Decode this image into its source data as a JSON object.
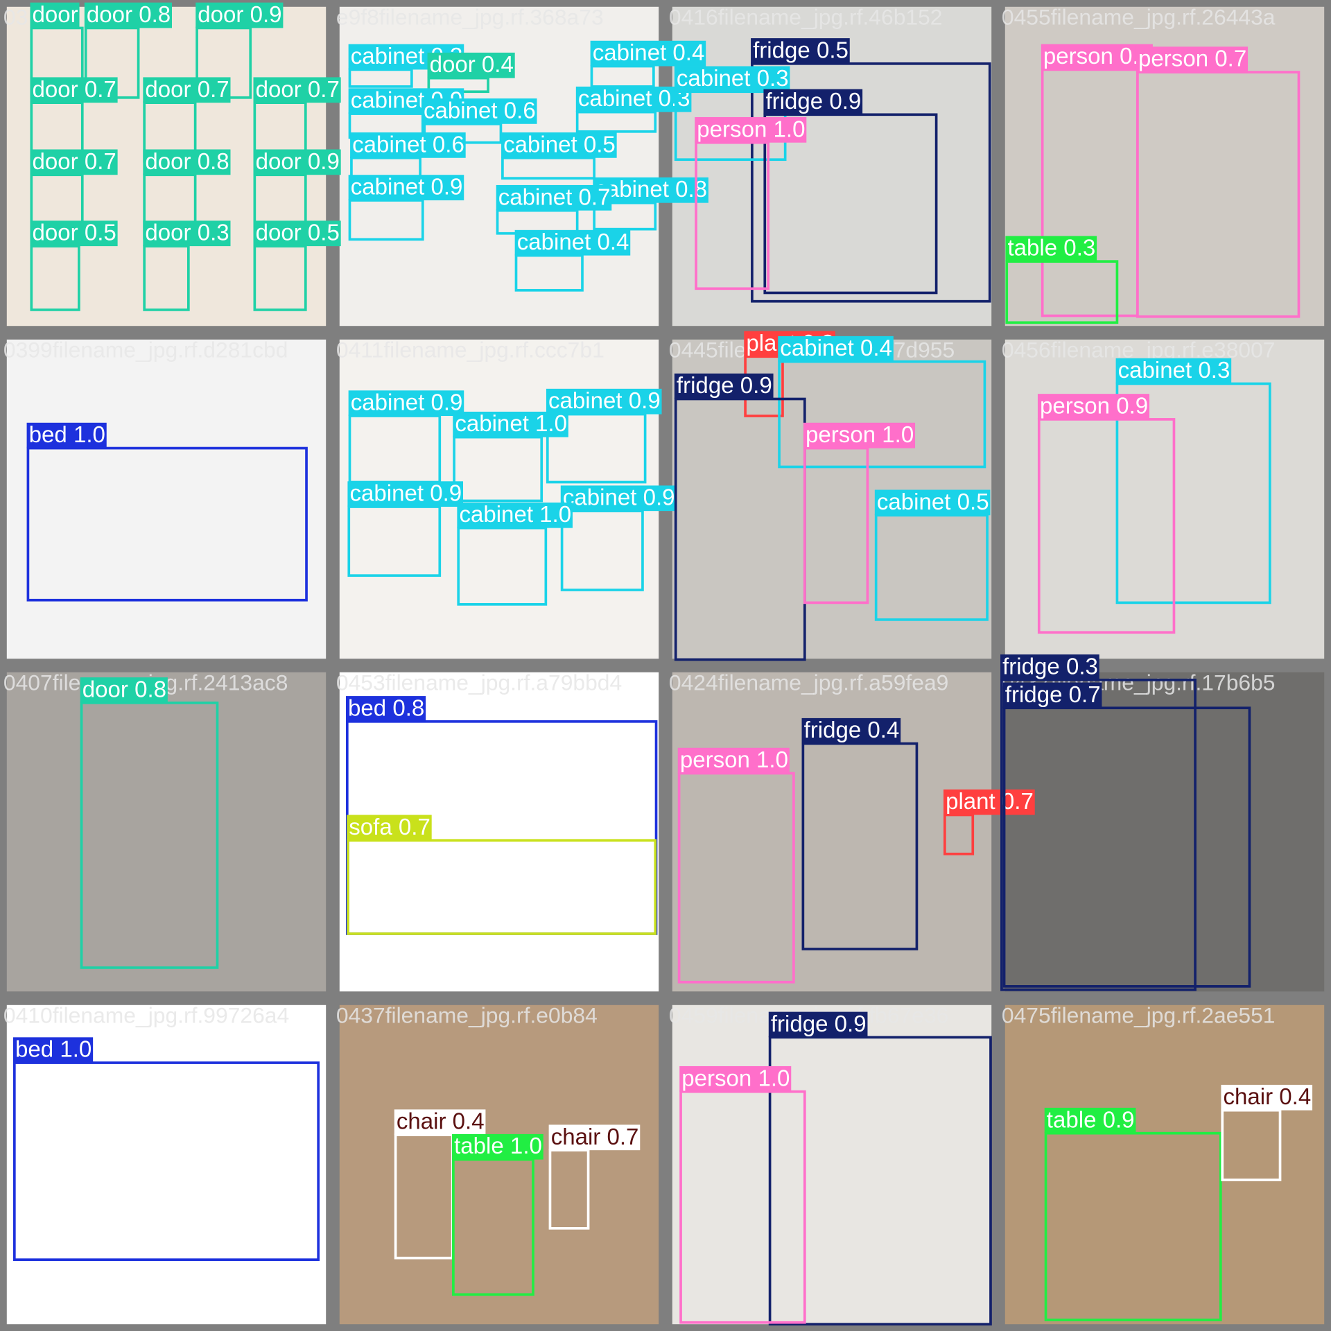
{
  "tiles": [
    {
      "filename": "03",
      "detections": [
        {
          "label": "door",
          "color": "#1fd1a6"
        },
        {
          "label": "door 0.8",
          "color": "#1fd1a6"
        },
        {
          "label": "door 0.9",
          "color": "#1fd1a6"
        },
        {
          "label": "door 0.7",
          "color": "#1fd1a6"
        },
        {
          "label": "door 0.7",
          "color": "#1fd1a6"
        },
        {
          "label": "door 0.7",
          "color": "#1fd1a6"
        },
        {
          "label": "door 0.7",
          "color": "#1fd1a6"
        },
        {
          "label": "door 0.8",
          "color": "#1fd1a6"
        },
        {
          "label": "door 0.9",
          "color": "#1fd1a6"
        },
        {
          "label": "door 0.5",
          "color": "#1fd1a6"
        },
        {
          "label": "door 0.3",
          "color": "#1fd1a6"
        },
        {
          "label": "door 0.5",
          "color": "#1fd1a6"
        }
      ]
    },
    {
      "filename": "e9f8filename_jpg.rf.368a73",
      "detections": [
        {
          "label": "cabinet 0.3",
          "color": "#1ad3e8"
        },
        {
          "label": "door 0.4",
          "color": "#1fd1a6"
        },
        {
          "label": "cabinet 0.4",
          "color": "#1ad3e8"
        },
        {
          "label": "cabinet 0.9",
          "color": "#1ad3e8"
        },
        {
          "label": "cabinet 0.6",
          "color": "#1ad3e8"
        },
        {
          "label": "cabinet 0.3",
          "color": "#1ad3e8"
        },
        {
          "label": "cabinet 0.6",
          "color": "#1ad3e8"
        },
        {
          "label": "cabinet 0.5",
          "color": "#1ad3e8"
        },
        {
          "label": "cabinet 0.9",
          "color": "#1ad3e8"
        },
        {
          "label": "cabinet 0.8",
          "color": "#1ad3e8"
        },
        {
          "label": "cabinet 0.7",
          "color": "#1ad3e8"
        },
        {
          "label": "cabinet 0.4",
          "color": "#1ad3e8"
        }
      ]
    },
    {
      "filename": "0416filename_jpg.rf.46b152",
      "detections": [
        {
          "label": "fridge 0.5",
          "color": "#13216b"
        },
        {
          "label": "cabinet 0.3",
          "color": "#1ad3e8"
        },
        {
          "label": "fridge 0.9",
          "color": "#13216b"
        },
        {
          "label": "person 1.0",
          "color": "#ff6fca"
        }
      ]
    },
    {
      "filename": "0455filename_jpg.rf.26443a",
      "detections": [
        {
          "label": "person 0.3",
          "color": "#ff6fca"
        },
        {
          "label": "person 0.7",
          "color": "#ff6fca"
        },
        {
          "label": "table 0.3",
          "color": "#21ee43"
        }
      ]
    },
    {
      "filename": "0399filename_jpg.rf.d281cbd",
      "detections": [
        {
          "label": "bed 1.0",
          "color": "#1d31dd"
        }
      ]
    },
    {
      "filename": "0411filename_jpg.rf.ccc7b1",
      "detections": [
        {
          "label": "cabinet 0.9",
          "color": "#1ad3e8"
        },
        {
          "label": "cabinet 0.9",
          "color": "#1ad3e8"
        },
        {
          "label": "cabinet 1.0",
          "color": "#1ad3e8"
        },
        {
          "label": "cabinet 0.9",
          "color": "#1ad3e8"
        },
        {
          "label": "cabinet 0.9",
          "color": "#1ad3e8"
        },
        {
          "label": "cabinet 1.0",
          "color": "#1ad3e8"
        }
      ]
    },
    {
      "filename": "0445filename_jpg.rf.457d955",
      "detections": [
        {
          "label": "plant 0.3",
          "color": "#ff3f3f"
        },
        {
          "label": "cabinet 0.4",
          "color": "#1ad3e8"
        },
        {
          "label": "fridge 0.9",
          "color": "#13216b"
        },
        {
          "label": "person 1.0",
          "color": "#ff6fca"
        },
        {
          "label": "cabinet 0.5",
          "color": "#1ad3e8"
        }
      ]
    },
    {
      "filename": "0456filename_jpg.rf.e38007",
      "detections": [
        {
          "label": "cabinet 0.3",
          "color": "#1ad3e8"
        },
        {
          "label": "person 0.9",
          "color": "#ff6fca"
        }
      ]
    },
    {
      "filename": "0407filename_jpg.rf.2413ac8",
      "detections": [
        {
          "label": "door 0.8",
          "color": "#1fd1a6"
        }
      ]
    },
    {
      "filename": "0453filename_jpg.rf.a79bbd4",
      "detections": [
        {
          "label": "bed 0.8",
          "color": "#1d31dd"
        },
        {
          "label": "sofa 0.7",
          "color": "#c9e11b"
        }
      ]
    },
    {
      "filename": "0424filename_jpg.rf.a59fea9",
      "detections": [
        {
          "label": "fridge 0.4",
          "color": "#13216b"
        },
        {
          "label": "person 1.0",
          "color": "#ff6fca"
        },
        {
          "label": "plant 0.7",
          "color": "#ff3f3f"
        }
      ]
    },
    {
      "filename": "0437filename_jpg.rf.17b6b5",
      "detections": [
        {
          "label": "fridge 0.3",
          "color": "#13216b"
        },
        {
          "label": "fridge 0.7",
          "color": "#13216b"
        }
      ]
    },
    {
      "filename": "0410filename_jpg.rf.99726a4",
      "detections": [
        {
          "label": "bed 1.0",
          "color": "#1d31dd"
        }
      ]
    },
    {
      "filename": "0437filename_jpg.rf.e0b84",
      "detections": [
        {
          "label": "chair 0.4",
          "color": "#ffffff",
          "text_color": "#5b1111"
        },
        {
          "label": "table 1.0",
          "color": "#21ee43"
        },
        {
          "label": "chair 0.7",
          "color": "#ffffff",
          "text_color": "#5b1111"
        }
      ]
    },
    {
      "filename": "0459filename_jpg.rf.fb67e36",
      "detections": [
        {
          "label": "fridge 0.9",
          "color": "#13216b"
        },
        {
          "label": "person 1.0",
          "color": "#ff6fca"
        }
      ]
    },
    {
      "filename": "0475filename_jpg.rf.2ae551",
      "detections": [
        {
          "label": "table 0.9",
          "color": "#21ee43"
        },
        {
          "label": "chair 0.4",
          "color": "#ffffff",
          "text_color": "#5b1111"
        }
      ]
    }
  ]
}
